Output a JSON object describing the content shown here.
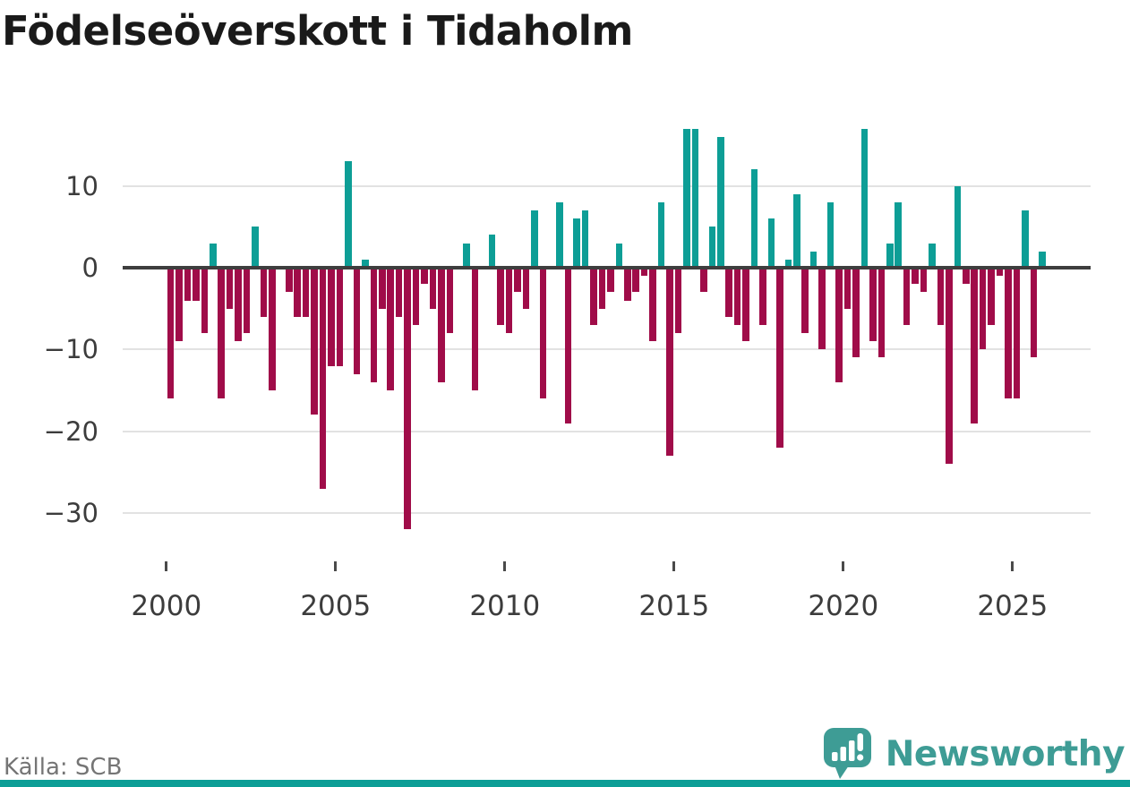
{
  "title": "Födelseöverskott i Tidaholm",
  "source": "Källa: SCB",
  "branding": {
    "logo_text": "Newsworthy",
    "logo_color": "#3e9c95"
  },
  "chart_data": {
    "type": "bar",
    "title": "Födelseöverskott i Tidaholm",
    "xlabel": "",
    "ylabel": "",
    "legend_position": "none",
    "grid": true,
    "ylim": [
      -35,
      18.5
    ],
    "positive_color": "#0d9e96",
    "negative_color": "#a00c49",
    "y_ticks": [
      10,
      0,
      -10,
      -20,
      -30
    ],
    "y_tick_labels": [
      "10",
      "0",
      "−10",
      "−20",
      "−30"
    ],
    "x_ticks": [
      2000,
      2005,
      2010,
      2015,
      2020,
      2025
    ],
    "x_tick_labels": [
      "2000",
      "2005",
      "2010",
      "2015",
      "2020",
      "2025"
    ],
    "x_unit": "quarter",
    "range": "2000Q1–2025Q4",
    "years": [
      {
        "year": 2000,
        "q": [
          -16,
          -9,
          -4,
          -4
        ]
      },
      {
        "year": 2001,
        "q": [
          -8,
          3,
          -16,
          -5
        ]
      },
      {
        "year": 2002,
        "q": [
          -9,
          -8,
          5,
          -6
        ]
      },
      {
        "year": 2003,
        "q": [
          -15,
          0,
          -3,
          -6
        ]
      },
      {
        "year": 2004,
        "q": [
          -6,
          -18,
          -27,
          -12
        ]
      },
      {
        "year": 2005,
        "q": [
          -12,
          13,
          -13,
          1
        ]
      },
      {
        "year": 2006,
        "q": [
          -14,
          -5,
          -15,
          -6
        ]
      },
      {
        "year": 2007,
        "q": [
          -32,
          -7,
          -2,
          -5
        ]
      },
      {
        "year": 2008,
        "q": [
          -14,
          -8,
          0,
          3
        ]
      },
      {
        "year": 2009,
        "q": [
          -15,
          0,
          4,
          -7
        ]
      },
      {
        "year": 2010,
        "q": [
          -8,
          -3,
          -5,
          7
        ]
      },
      {
        "year": 2011,
        "q": [
          -16,
          0,
          8,
          -19
        ]
      },
      {
        "year": 2012,
        "q": [
          6,
          7,
          -7,
          -5
        ]
      },
      {
        "year": 2013,
        "q": [
          -3,
          3,
          -4,
          -3
        ]
      },
      {
        "year": 2014,
        "q": [
          -1,
          -9,
          8,
          -23
        ]
      },
      {
        "year": 2015,
        "q": [
          -8,
          17,
          17,
          -3
        ]
      },
      {
        "year": 2016,
        "q": [
          5,
          16,
          -6,
          -7
        ]
      },
      {
        "year": 2017,
        "q": [
          -9,
          12,
          -7,
          6
        ]
      },
      {
        "year": 2018,
        "q": [
          -22,
          1,
          9,
          -8
        ]
      },
      {
        "year": 2019,
        "q": [
          2,
          -10,
          8,
          -14
        ]
      },
      {
        "year": 2020,
        "q": [
          -5,
          -11,
          17,
          -9
        ]
      },
      {
        "year": 2021,
        "q": [
          -11,
          3,
          8,
          -7
        ]
      },
      {
        "year": 2022,
        "q": [
          -2,
          -3,
          3,
          -7
        ]
      },
      {
        "year": 2023,
        "q": [
          -24,
          10,
          -2,
          -19
        ]
      },
      {
        "year": 2024,
        "q": [
          -10,
          -7,
          -1,
          -16
        ]
      },
      {
        "year": 2025,
        "q": [
          -16,
          7,
          -11,
          2
        ]
      }
    ]
  }
}
